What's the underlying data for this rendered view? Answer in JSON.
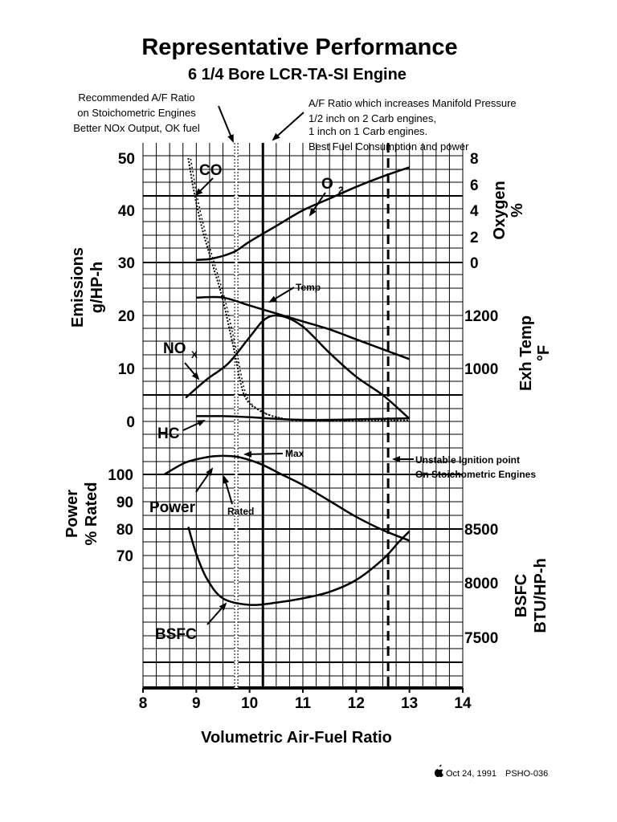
{
  "chart_data": {
    "type": "line",
    "title": "Representative Performance",
    "subtitle": "6 1/4 Bore LCR-TA-SI Engine",
    "xlabel": "Volumetric Air-Fuel Ratio",
    "xlim": [
      8,
      14
    ],
    "x_ticks": [
      "8",
      "9",
      "10",
      "11",
      "12",
      "13",
      "14"
    ],
    "grid": true,
    "axes": {
      "emissions": {
        "label_line1": "Emissions",
        "label_line2": "g/HP-h",
        "ticks": [
          "50",
          "40",
          "30",
          "20",
          "10",
          "0"
        ]
      },
      "oxygen": {
        "label_line1": "Oxygen",
        "label_line2": "%",
        "ticks": [
          "8",
          "6",
          "4",
          "2",
          "0"
        ]
      },
      "exh_temp": {
        "label_line1": "Exh Temp",
        "label_line2": "°F",
        "ticks": [
          "1200",
          "1000"
        ]
      },
      "power": {
        "label_line1": "Power",
        "label_line2": "% Rated",
        "ticks": [
          "100",
          "90",
          "80",
          "70"
        ]
      },
      "bsfc": {
        "label_line1": "BSFC",
        "label_line2": "BTU/HP-h",
        "ticks": [
          "8500",
          "8000",
          "7500"
        ]
      }
    },
    "series": [
      {
        "name": "CO",
        "axis": "emissions",
        "x": [
          8.85,
          8.95,
          9.1,
          9.3,
          9.5,
          9.7,
          9.9,
          10.2,
          10.6,
          11.0,
          12.0,
          13.0
        ],
        "y": [
          50,
          44,
          37,
          30,
          23,
          14,
          5,
          2,
          0.6,
          0.3,
          0.2,
          0.2
        ]
      },
      {
        "name": "O2",
        "axis": "oxygen",
        "x": [
          9.0,
          9.3,
          9.7,
          10.0,
          10.5,
          11.0,
          11.5,
          12.0,
          12.5,
          13.0
        ],
        "y": [
          0.2,
          0.3,
          0.8,
          1.6,
          2.8,
          4.0,
          4.9,
          5.8,
          6.6,
          7.3
        ]
      },
      {
        "name": "Temp",
        "axis": "exh_temp",
        "x": [
          9.0,
          9.5,
          10.0,
          10.5,
          11.0,
          11.5,
          12.0,
          12.5,
          13.0
        ],
        "y": [
          1245,
          1245,
          1225,
          1205,
          1185,
          1165,
          1140,
          1115,
          1090
        ]
      },
      {
        "name": "NOx",
        "axis": "emissions",
        "x": [
          8.8,
          9.2,
          9.6,
          10.0,
          10.3,
          10.6,
          11.0,
          11.5,
          12.0,
          12.5,
          13.0
        ],
        "y": [
          4.5,
          8,
          11,
          16,
          19.5,
          20,
          18,
          13,
          8.5,
          5,
          0.5
        ]
      },
      {
        "name": "HC",
        "axis": "emissions",
        "x": [
          9.0,
          9.5,
          10.0,
          10.5,
          11.0,
          11.5,
          12.0,
          12.5,
          13.0
        ],
        "y": [
          1,
          1,
          0.8,
          0.5,
          0.3,
          0.3,
          0.4,
          0.5,
          0.6
        ]
      },
      {
        "name": "Power",
        "axis": "power",
        "x": [
          8.4,
          8.8,
          9.2,
          9.5,
          9.8,
          10.2,
          10.6,
          11.0,
          11.5,
          12.0,
          12.5,
          13.0
        ],
        "y": [
          100,
          104.5,
          106.5,
          107,
          106.5,
          104,
          100,
          96,
          90,
          84,
          79,
          75
        ]
      },
      {
        "name": "BSFC",
        "axis": "bsfc",
        "x": [
          8.85,
          9.0,
          9.2,
          9.5,
          10.0,
          10.5,
          11.0,
          11.5,
          12.0,
          12.5,
          12.8,
          13.0
        ],
        "y": [
          8520,
          8270,
          8040,
          7860,
          7800,
          7820,
          7860,
          7920,
          8030,
          8220,
          8380,
          8480
        ]
      }
    ],
    "vertical_lines": [
      {
        "x": 9.75,
        "style": "dotted",
        "annotation_lines": [
          "Recommended A/F Ratio",
          "on Stoichometric Engines",
          "Better NOx Output, OK fuel"
        ]
      },
      {
        "x": 10.25,
        "style": "solid",
        "annotation_lines": [
          "A/F Ratio which increases Manifold Pressure",
          "1/2 inch on 2 Carb engines,",
          "1 inch on 1 Carb engines.",
          "Best Fuel Consumption and power"
        ]
      },
      {
        "x": 12.6,
        "style": "dashed",
        "annotation_lines": [
          "Unstable Ignition point",
          "On Stoichometric Engines"
        ]
      }
    ],
    "labels": {
      "co": "CO",
      "o2_main": "O",
      "o2_sub": "2",
      "temp": "Temp",
      "nox_main": "NO",
      "nox_sub": "X",
      "hc": "HC",
      "max": "Max",
      "power": "Power",
      "rated": "Rated",
      "bsfc": "BSFC"
    }
  },
  "footer": {
    "date": "Oct 24, 1991",
    "code": "PSHO-036",
    "logo_icon": "apple-logo-icon"
  }
}
